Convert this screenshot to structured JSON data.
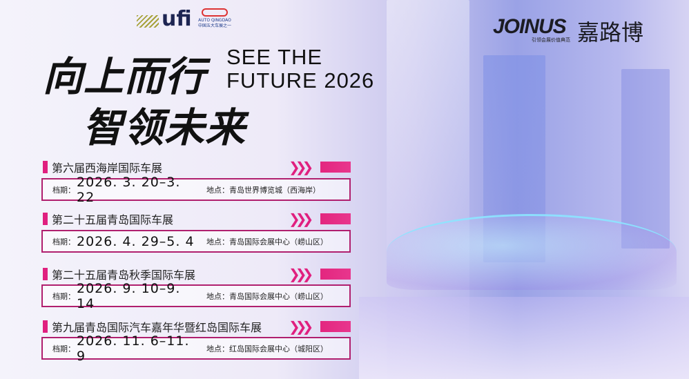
{
  "logos": {
    "ufi": "ufi",
    "auto_qingdao": "AUTO QINGDAO",
    "auto_qingdao_sub": "中国五大车展之一",
    "joinus": "JOINUS",
    "joinus_sub": "引领会展价值典范",
    "jialubo": "嘉路博"
  },
  "headline": {
    "line1": "向上而行",
    "line2": "智领未来",
    "en_line1": "SEE THE",
    "en_line2": "FUTURE 2026"
  },
  "events": [
    {
      "title": "第六届西海岸国际车展",
      "date_label": "档期：",
      "date": "2026. 3. 20–3. 22",
      "location": "地点：青岛世界博览城（西海岸）"
    },
    {
      "title": "第二十五届青岛国际车展",
      "date_label": "档期：",
      "date": "2026. 4. 29–5. 4",
      "location": "地点：青岛国际会展中心（崂山区）"
    },
    {
      "title": "第二十五届青岛秋季国际车展",
      "date_label": "档期：",
      "date": "2026. 9. 10–9. 14",
      "location": "地点：青岛国际会展中心（崂山区）"
    },
    {
      "title": "第九届青岛国际汽车嘉年华暨红岛国际车展",
      "date_label": "档期：",
      "date": "2026. 11. 6–11. 9",
      "location": "地点：红岛国际会展中心（城阳区）"
    }
  ],
  "colors": {
    "accent": "#e0207f",
    "border": "#b01f6e"
  }
}
